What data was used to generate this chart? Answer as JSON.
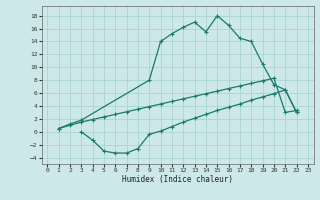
{
  "xlabel": "Humidex (Indice chaleur)",
  "bg_color": "#cce8e8",
  "grid_color": "#aad4d4",
  "line_color": "#1a7a6e",
  "xlim": [
    -0.5,
    23.5
  ],
  "ylim": [
    -5.0,
    19.5
  ],
  "xticks": [
    0,
    1,
    2,
    3,
    4,
    5,
    6,
    7,
    8,
    9,
    10,
    11,
    12,
    13,
    14,
    15,
    16,
    17,
    18,
    19,
    20,
    21,
    22,
    23
  ],
  "yticks": [
    -4,
    -2,
    0,
    2,
    4,
    6,
    8,
    10,
    12,
    14,
    16,
    18
  ],
  "curve_upper_x": [
    1,
    2,
    3,
    9,
    10,
    11,
    12,
    13,
    14,
    15,
    16,
    17,
    18,
    19,
    20,
    21,
    22
  ],
  "curve_upper_y": [
    0.5,
    1.2,
    1.8,
    8.0,
    14.0,
    15.2,
    16.2,
    17.0,
    15.5,
    18.0,
    16.5,
    14.5,
    14.0,
    10.5,
    7.3,
    6.5,
    3.0
  ],
  "curve_mid_x": [
    1,
    2,
    3,
    4,
    5,
    6,
    7,
    8,
    9,
    10,
    11,
    12,
    13,
    14,
    15,
    16,
    17,
    18,
    19,
    20,
    21,
    22
  ],
  "curve_mid_y": [
    0.5,
    1.0,
    1.5,
    1.9,
    2.3,
    2.7,
    3.1,
    3.5,
    3.9,
    4.3,
    4.7,
    5.1,
    5.5,
    5.9,
    6.3,
    6.7,
    7.1,
    7.5,
    7.9,
    8.3,
    3.0,
    3.3
  ],
  "curve_low_x": [
    3,
    4,
    5,
    6,
    7,
    8,
    9,
    10,
    11,
    12,
    13,
    14,
    15,
    16,
    17,
    18,
    19,
    20,
    21,
    22
  ],
  "curve_low_y": [
    0.0,
    -1.3,
    -3.0,
    -3.3,
    -3.3,
    -2.6,
    -0.4,
    0.1,
    0.8,
    1.5,
    2.1,
    2.7,
    3.3,
    3.8,
    4.3,
    4.9,
    5.4,
    5.9,
    6.5,
    3.0
  ]
}
